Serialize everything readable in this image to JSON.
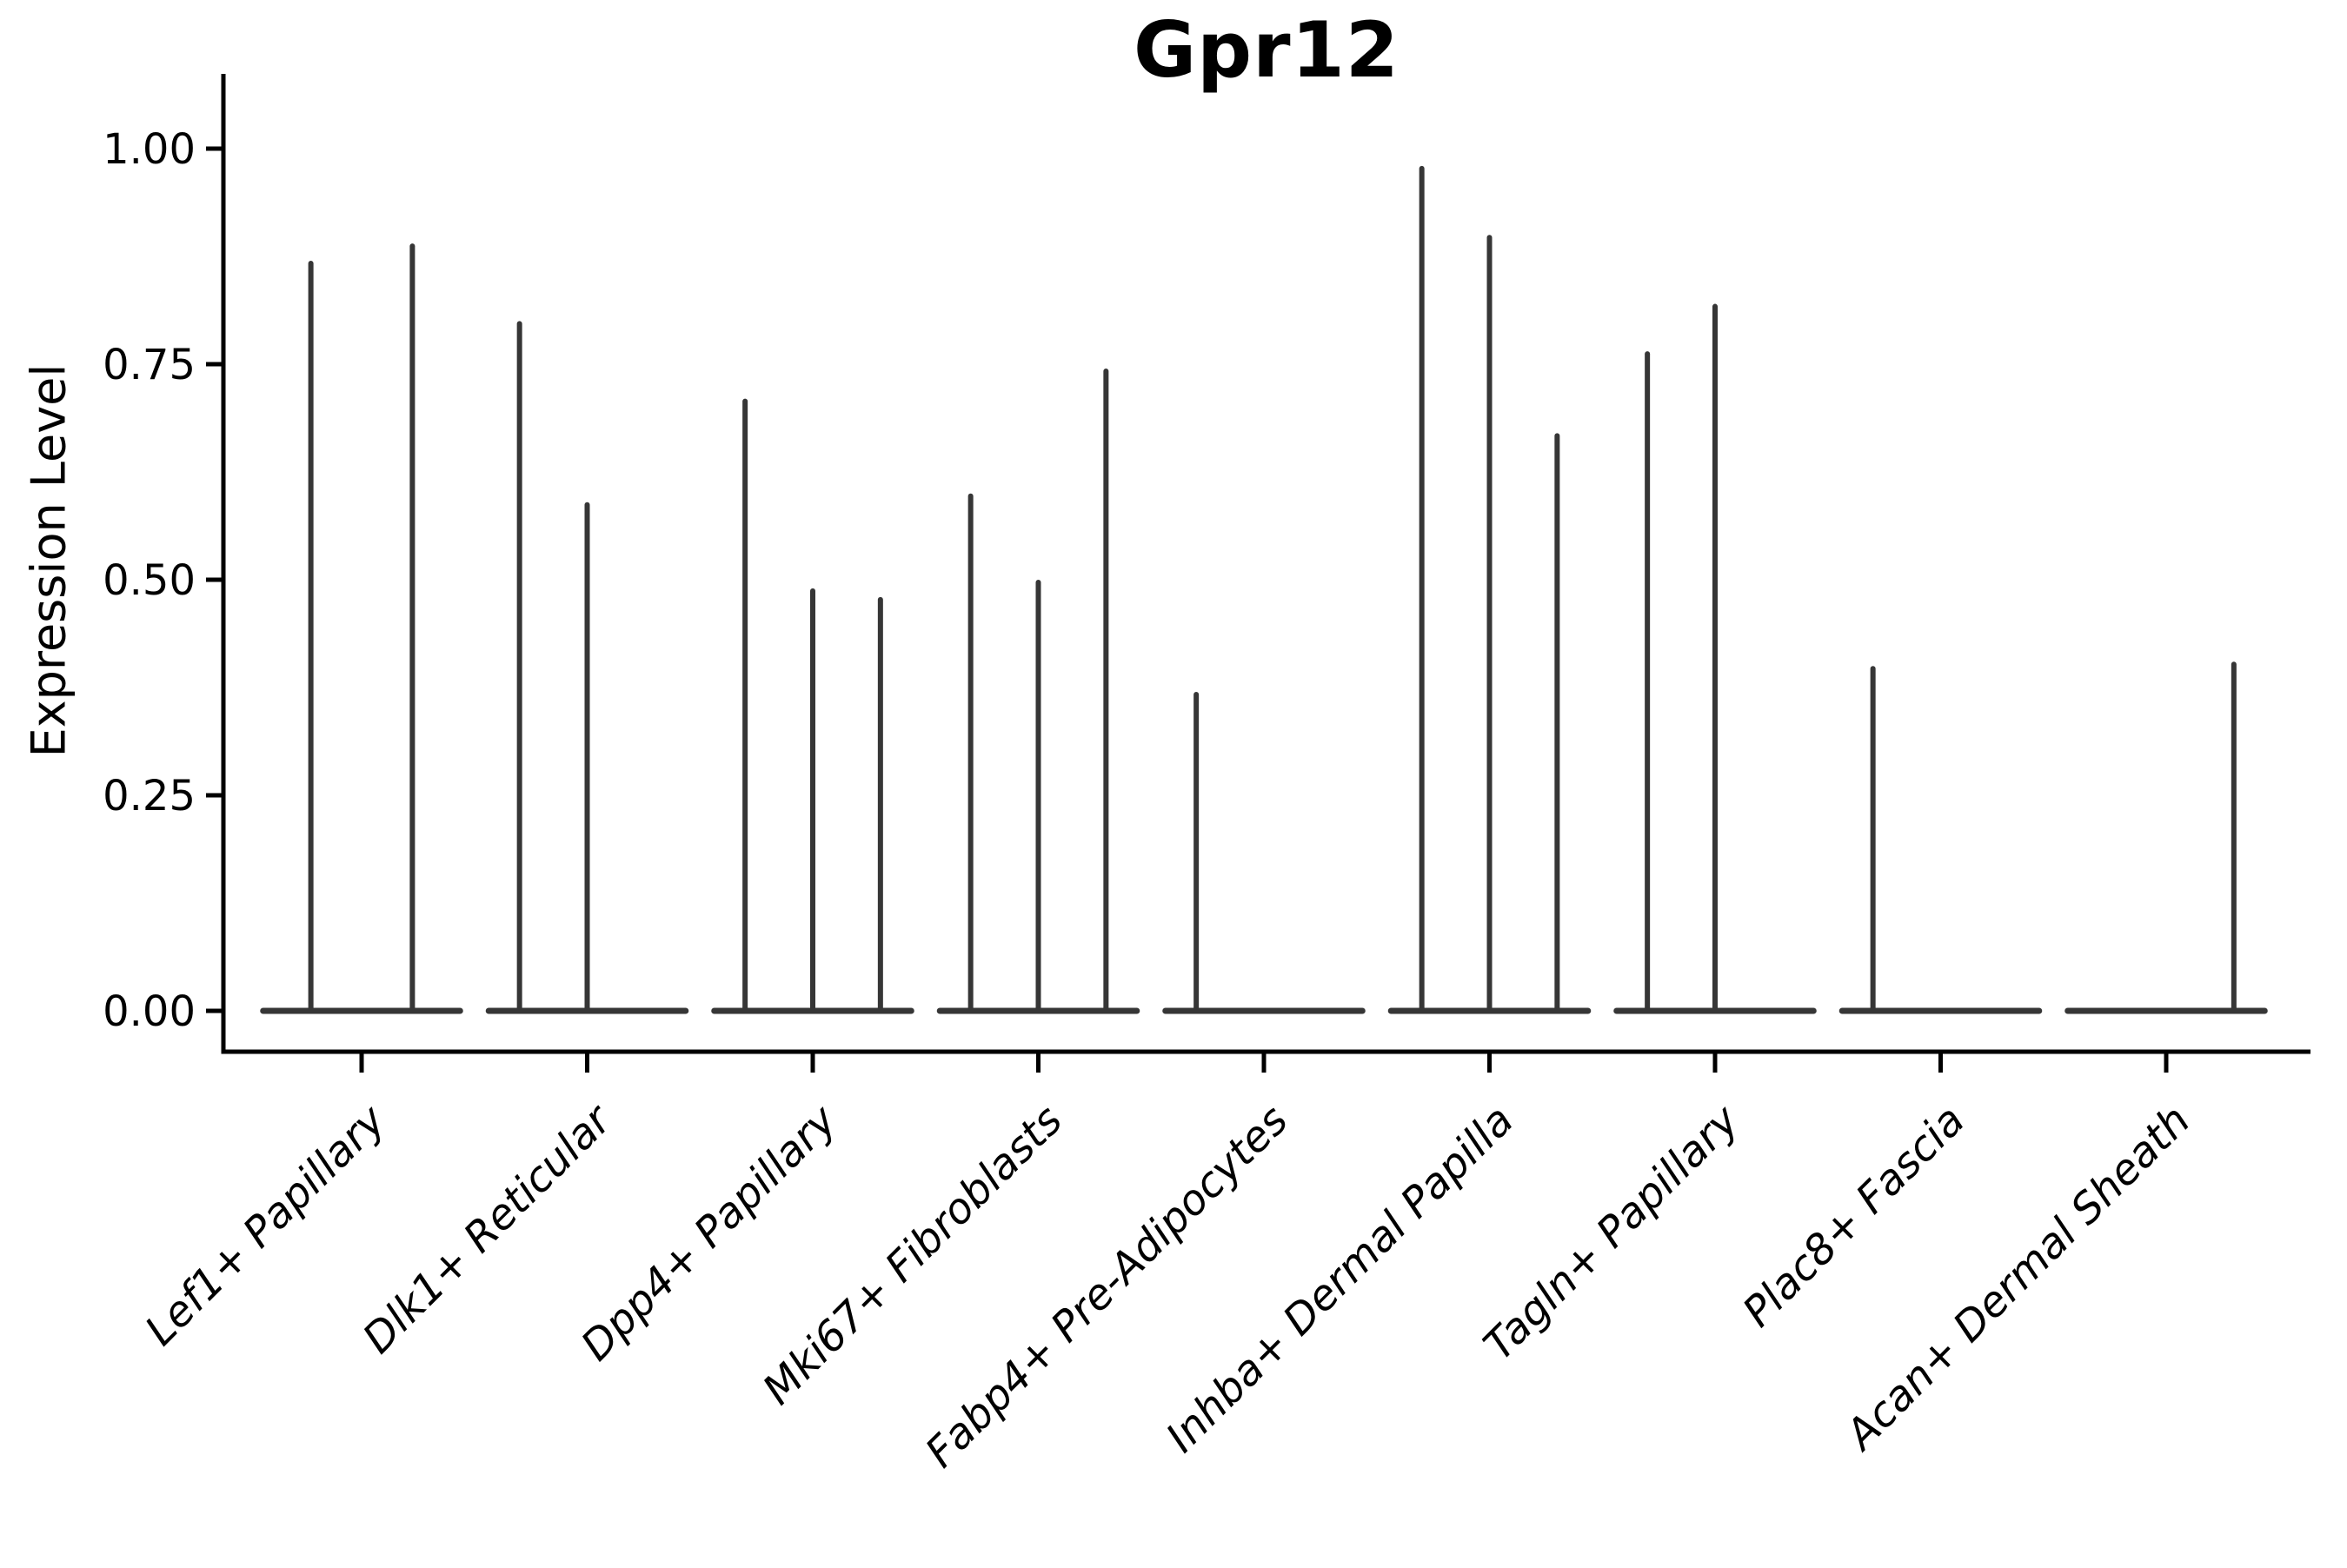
{
  "chart_data": {
    "type": "violin",
    "title": "Gpr12",
    "xlabel": "",
    "ylabel": "Expression Level",
    "ylim": [
      0,
      1.0
    ],
    "grid": false,
    "legend": "none",
    "ink_color": "#363636",
    "axis_color": "#000000",
    "yticks": [
      {
        "value": 0.0,
        "label": "0.00"
      },
      {
        "value": 0.25,
        "label": "0.25"
      },
      {
        "value": 0.5,
        "label": "0.50"
      },
      {
        "value": 0.75,
        "label": "0.75"
      },
      {
        "value": 1.0,
        "label": "1.00"
      }
    ],
    "categories": [
      "Lef1+ Papillary",
      "Dlk1+ Reticular",
      "Dpp4+ Papillary",
      "Mki67+ Fibroblasts",
      "Fabp4+ Pre-Adipocytes",
      "Inhba+ Dermal Papilla",
      "Tagln+ Papillary",
      "Plac8+ Fascia",
      "Acan+ Dermal Sheath"
    ],
    "violins": [
      {
        "category": "Lef1+ Papillary",
        "n_violins": 2,
        "spikes": [
          {
            "slot": 0,
            "value": 0.87
          },
          {
            "slot": 1,
            "value": 0.89
          }
        ]
      },
      {
        "category": "Dlk1+ Reticular",
        "n_violins": 3,
        "spikes": [
          {
            "slot": 0,
            "value": 0.8
          },
          {
            "slot": 1,
            "value": 0.59
          }
        ]
      },
      {
        "category": "Dpp4+ Papillary",
        "n_violins": 3,
        "spikes": [
          {
            "slot": 0,
            "value": 0.71
          },
          {
            "slot": 1,
            "value": 0.49
          },
          {
            "slot": 2,
            "value": 0.48
          }
        ]
      },
      {
        "category": "Mki67+ Fibroblasts",
        "n_violins": 3,
        "spikes": [
          {
            "slot": 0,
            "value": 0.6
          },
          {
            "slot": 1,
            "value": 0.5
          },
          {
            "slot": 2,
            "value": 0.745
          }
        ]
      },
      {
        "category": "Fabp4+ Pre-Adipocytes",
        "n_violins": 3,
        "spikes": [
          {
            "slot": 0,
            "value": 0.37
          }
        ]
      },
      {
        "category": "Inhba+ Dermal Papilla",
        "n_violins": 3,
        "spikes": [
          {
            "slot": 0,
            "value": 0.98
          },
          {
            "slot": 1,
            "value": 0.9
          },
          {
            "slot": 2,
            "value": 0.67
          }
        ]
      },
      {
        "category": "Tagln+ Papillary",
        "n_violins": 3,
        "spikes": [
          {
            "slot": 0,
            "value": 0.765
          },
          {
            "slot": 1,
            "value": 0.82
          }
        ]
      },
      {
        "category": "Plac8+ Fascia",
        "n_violins": 3,
        "spikes": [
          {
            "slot": 0,
            "value": 0.4
          }
        ]
      },
      {
        "category": "Acan+ Dermal Sheath",
        "n_violins": 3,
        "spikes": [
          {
            "slot": 2,
            "value": 0.405
          }
        ]
      }
    ]
  }
}
